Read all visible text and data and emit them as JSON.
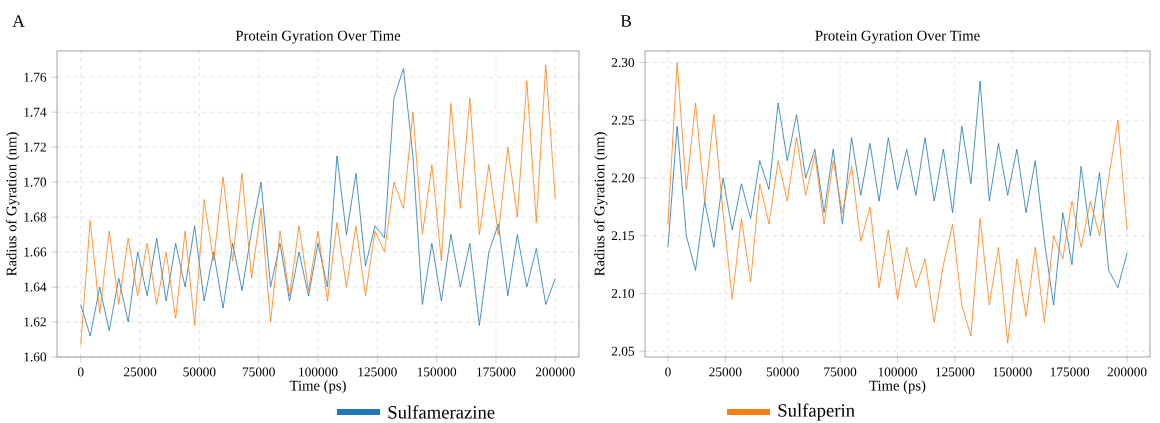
{
  "chart_data": [
    {
      "type": "line",
      "title": "Protein Gyration Over Time",
      "xlabel": "Time (ps)",
      "ylabel": "Radius of Gyration (nm)",
      "annotations": [
        "A"
      ],
      "x": [
        0,
        4000,
        8000,
        12000,
        16000,
        20000,
        24000,
        28000,
        32000,
        36000,
        40000,
        44000,
        48000,
        52000,
        56000,
        60000,
        64000,
        68000,
        72000,
        76000,
        80000,
        84000,
        88000,
        92000,
        96000,
        100000,
        104000,
        108000,
        112000,
        116000,
        120000,
        124000,
        128000,
        132000,
        136000,
        140000,
        144000,
        148000,
        152000,
        156000,
        160000,
        164000,
        168000,
        172000,
        176000,
        180000,
        184000,
        188000,
        192000,
        196000,
        200000
      ],
      "series": [
        {
          "name": "Sulfamerazine",
          "color": "#1f77b4",
          "values": [
            1.63,
            1.612,
            1.64,
            1.615,
            1.645,
            1.62,
            1.66,
            1.635,
            1.668,
            1.632,
            1.665,
            1.64,
            1.675,
            1.632,
            1.66,
            1.628,
            1.665,
            1.638,
            1.672,
            1.7,
            1.64,
            1.665,
            1.632,
            1.66,
            1.635,
            1.665,
            1.64,
            1.715,
            1.67,
            1.705,
            1.652,
            1.675,
            1.668,
            1.748,
            1.765,
            1.715,
            1.63,
            1.665,
            1.632,
            1.67,
            1.64,
            1.665,
            1.618,
            1.66,
            1.676,
            1.635,
            1.67,
            1.64,
            1.662,
            1.63,
            1.645
          ]
        },
        {
          "name": "Sulfaperin",
          "color": "#ff7f0e",
          "values": [
            1.607,
            1.678,
            1.625,
            1.672,
            1.63,
            1.668,
            1.635,
            1.665,
            1.63,
            1.66,
            1.622,
            1.672,
            1.618,
            1.69,
            1.655,
            1.703,
            1.655,
            1.705,
            1.645,
            1.685,
            1.62,
            1.672,
            1.635,
            1.675,
            1.638,
            1.672,
            1.632,
            1.677,
            1.64,
            1.675,
            1.635,
            1.672,
            1.66,
            1.7,
            1.685,
            1.74,
            1.67,
            1.71,
            1.655,
            1.745,
            1.685,
            1.748,
            1.67,
            1.71,
            1.67,
            1.72,
            1.68,
            1.758,
            1.677,
            1.767,
            1.69
          ]
        }
      ],
      "xlim": [
        -10000,
        210000
      ],
      "ylim": [
        1.6,
        1.775
      ],
      "xticks": [
        0,
        25000,
        50000,
        75000,
        100000,
        125000,
        150000,
        175000,
        200000
      ],
      "yticks": [
        {
          "value": 1.6,
          "label": "1.60"
        },
        1.62,
        1.64,
        1.66,
        1.68,
        {
          "value": 1.7,
          "label": "1.70"
        },
        1.72,
        1.74,
        1.76
      ],
      "grid": true,
      "legend": "bottom"
    },
    {
      "type": "line",
      "title": "Protein Gyration Over Time",
      "xlabel": "Time (ps)",
      "ylabel": "Radius of Gyration (nm)",
      "annotations": [
        "B"
      ],
      "x": [
        0,
        4000,
        8000,
        12000,
        16000,
        20000,
        24000,
        28000,
        32000,
        36000,
        40000,
        44000,
        48000,
        52000,
        56000,
        60000,
        64000,
        68000,
        72000,
        76000,
        80000,
        84000,
        88000,
        92000,
        96000,
        100000,
        104000,
        108000,
        112000,
        116000,
        120000,
        124000,
        128000,
        132000,
        136000,
        140000,
        144000,
        148000,
        152000,
        156000,
        160000,
        164000,
        168000,
        172000,
        176000,
        180000,
        184000,
        188000,
        192000,
        196000,
        200000
      ],
      "series": [
        {
          "color": "#1f77b4",
          "values": [
            2.14,
            2.245,
            2.15,
            2.12,
            2.18,
            2.14,
            2.2,
            2.155,
            2.195,
            2.165,
            2.215,
            2.19,
            2.265,
            2.215,
            2.255,
            2.2,
            2.225,
            2.17,
            2.225,
            2.16,
            2.235,
            2.185,
            2.23,
            2.18,
            2.235,
            2.19,
            2.225,
            2.185,
            2.235,
            2.18,
            2.225,
            2.17,
            2.245,
            2.195,
            2.284,
            2.18,
            2.23,
            2.185,
            2.225,
            2.17,
            2.215,
            2.145,
            2.09,
            2.17,
            2.125,
            2.21,
            2.15,
            2.205,
            2.12,
            2.105,
            2.135
          ]
        },
        {
          "color": "#ff7f0e",
          "values": [
            2.16,
            2.3,
            2.19,
            2.265,
            2.18,
            2.255,
            2.17,
            2.095,
            2.165,
            2.11,
            2.195,
            2.16,
            2.215,
            2.18,
            2.235,
            2.185,
            2.22,
            2.16,
            2.215,
            2.17,
            2.21,
            2.145,
            2.175,
            2.105,
            2.155,
            2.095,
            2.14,
            2.105,
            2.13,
            2.075,
            2.125,
            2.16,
            2.09,
            2.063,
            2.165,
            2.09,
            2.14,
            2.057,
            2.13,
            2.08,
            2.14,
            2.075,
            2.15,
            2.13,
            2.18,
            2.14,
            2.18,
            2.15,
            2.2,
            2.25,
            2.155
          ]
        }
      ],
      "xlim": [
        -10000,
        210000
      ],
      "ylim": [
        2.045,
        2.31
      ],
      "xticks": [
        0,
        25000,
        50000,
        75000,
        100000,
        125000,
        150000,
        175000,
        200000
      ],
      "yticks": [
        {
          "value": 2.05,
          "label": "2.05"
        },
        {
          "value": 2.1,
          "label": "2.10"
        },
        {
          "value": 2.15,
          "label": "2.15"
        },
        {
          "value": 2.2,
          "label": "2.20"
        },
        {
          "value": 2.25,
          "label": "2.25"
        },
        {
          "value": 2.3,
          "label": "2.30"
        }
      ],
      "grid": true
    }
  ]
}
